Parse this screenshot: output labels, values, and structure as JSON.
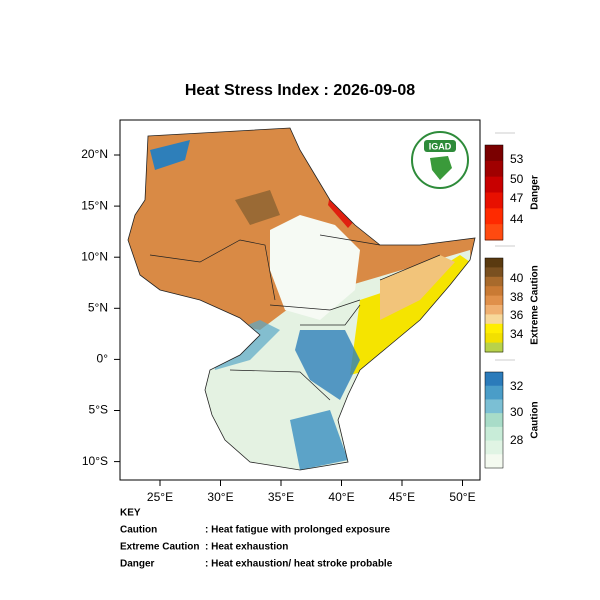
{
  "title": "Heat Stress Index : 2026-09-08",
  "map": {
    "lat_labels": [
      "20°N",
      "15°N",
      "10°N",
      "5°N",
      "0°",
      "5°S",
      "10°S"
    ],
    "lon_labels": [
      "25°E",
      "30°E",
      "35°E",
      "40°E",
      "45°E",
      "50°E"
    ]
  },
  "logo": "IGAD",
  "legend": [
    {
      "name": "Danger",
      "labels": [
        53,
        50,
        47,
        44
      ]
    },
    {
      "name": "Extreme Caution",
      "labels": [
        40,
        38,
        36,
        34
      ]
    },
    {
      "name": "Caution",
      "labels": [
        32,
        30,
        28
      ]
    }
  ],
  "key": {
    "heading": "KEY",
    "rows": [
      {
        "term": "Caution",
        "text": ": Heat fatigue with prolonged exposure"
      },
      {
        "term": "Extreme Caution",
        "text": ": Heat exhaustion"
      },
      {
        "term": "Danger",
        "text": ": Heat exhaustion/ heat stroke probable"
      }
    ]
  }
}
